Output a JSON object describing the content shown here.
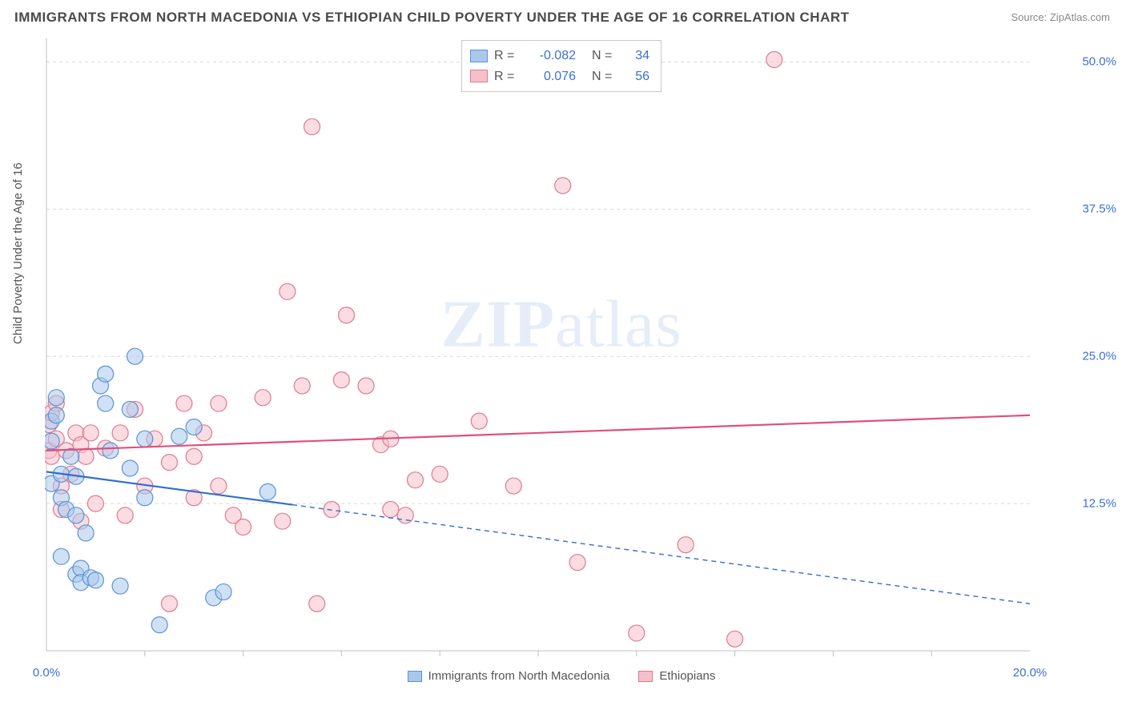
{
  "title": "IMMIGRANTS FROM NORTH MACEDONIA VS ETHIOPIAN CHILD POVERTY UNDER THE AGE OF 16 CORRELATION CHART",
  "source": "Source: ZipAtlas.com",
  "y_axis_label": "Child Poverty Under the Age of 16",
  "watermark": {
    "bold": "ZIP",
    "rest": "atlas"
  },
  "colors": {
    "series_a_fill": "#a9c8ec",
    "series_a_stroke": "#5a93d6",
    "series_a_line": "#2f6fd0",
    "series_b_fill": "#f5c0ca",
    "series_b_stroke": "#e07a8f",
    "series_b_line": "#e04f7a",
    "grid": "#d9d9d9",
    "axis": "#bfbfbf",
    "tick_text": "#3b6fd6",
    "label_text": "#555555",
    "title_text": "#4a4a4a",
    "background": "#ffffff"
  },
  "chart": {
    "type": "scatter",
    "xlim": [
      0,
      20
    ],
    "ylim": [
      0,
      52
    ],
    "x_ticks": [
      0,
      20
    ],
    "x_tick_labels": [
      "0.0%",
      "20.0%"
    ],
    "x_minor_ticks": [
      2,
      4,
      6,
      8,
      10,
      12,
      14,
      16,
      18
    ],
    "y_ticks": [
      12.5,
      25.0,
      37.5,
      50.0
    ],
    "y_tick_labels": [
      "12.5%",
      "25.0%",
      "37.5%",
      "50.0%"
    ],
    "marker_radius": 10,
    "marker_opacity": 0.55,
    "line_width": 2.2,
    "grid_dash": "4 4"
  },
  "legend_top": {
    "rows": [
      {
        "swatch_fill": "#a9c8ec",
        "swatch_stroke": "#5a93d6",
        "r_label": "R =",
        "r_value": "-0.082",
        "n_label": "N =",
        "n_value": "34"
      },
      {
        "swatch_fill": "#f5c0ca",
        "swatch_stroke": "#e07a8f",
        "r_label": "R =",
        "r_value": "0.076",
        "n_label": "N =",
        "n_value": "56"
      }
    ]
  },
  "legend_bottom": {
    "items": [
      {
        "swatch_fill": "#a9c8ec",
        "swatch_stroke": "#5a93d6",
        "label": "Immigrants from North Macedonia"
      },
      {
        "swatch_fill": "#f5c0ca",
        "swatch_stroke": "#e07a8f",
        "label": "Ethiopians"
      }
    ]
  },
  "series": {
    "a": {
      "name": "Immigrants from North Macedonia",
      "points": [
        [
          0.1,
          19.5
        ],
        [
          0.1,
          17.8
        ],
        [
          0.1,
          14.2
        ],
        [
          0.2,
          20.0
        ],
        [
          0.2,
          21.5
        ],
        [
          0.3,
          15.0
        ],
        [
          0.3,
          13.0
        ],
        [
          0.3,
          8.0
        ],
        [
          0.4,
          12.0
        ],
        [
          0.5,
          16.5
        ],
        [
          0.6,
          11.5
        ],
        [
          0.6,
          6.5
        ],
        [
          0.6,
          14.8
        ],
        [
          0.7,
          7.0
        ],
        [
          0.7,
          5.8
        ],
        [
          0.8,
          10.0
        ],
        [
          0.9,
          6.2
        ],
        [
          1.0,
          6.0
        ],
        [
          1.1,
          22.5
        ],
        [
          1.2,
          21.0
        ],
        [
          1.2,
          23.5
        ],
        [
          1.3,
          17.0
        ],
        [
          1.5,
          5.5
        ],
        [
          1.7,
          15.5
        ],
        [
          1.7,
          20.5
        ],
        [
          1.8,
          25.0
        ],
        [
          2.0,
          18.0
        ],
        [
          2.0,
          13.0
        ],
        [
          2.3,
          2.2
        ],
        [
          2.7,
          18.2
        ],
        [
          3.0,
          19.0
        ],
        [
          3.4,
          4.5
        ],
        [
          3.6,
          5.0
        ],
        [
          4.5,
          13.5
        ]
      ],
      "trend": {
        "y_at_x0": 15.2,
        "y_at_x20": 4.0,
        "solid_until_x": 5.0
      }
    },
    "b": {
      "name": "Ethiopians",
      "points": [
        [
          0.05,
          17.0
        ],
        [
          0.05,
          19.2
        ],
        [
          0.1,
          20.2
        ],
        [
          0.1,
          16.5
        ],
        [
          0.2,
          21.0
        ],
        [
          0.2,
          18.0
        ],
        [
          0.3,
          14.0
        ],
        [
          0.3,
          12.0
        ],
        [
          0.4,
          17.0
        ],
        [
          0.5,
          15.0
        ],
        [
          0.6,
          18.5
        ],
        [
          0.7,
          11.0
        ],
        [
          0.7,
          17.5
        ],
        [
          0.8,
          16.5
        ],
        [
          0.9,
          18.5
        ],
        [
          1.0,
          12.5
        ],
        [
          1.2,
          17.2
        ],
        [
          1.5,
          18.5
        ],
        [
          1.6,
          11.5
        ],
        [
          1.8,
          20.5
        ],
        [
          2.0,
          14.0
        ],
        [
          2.2,
          18.0
        ],
        [
          2.5,
          16.0
        ],
        [
          2.5,
          4.0
        ],
        [
          2.8,
          21.0
        ],
        [
          3.0,
          16.5
        ],
        [
          3.0,
          13.0
        ],
        [
          3.2,
          18.5
        ],
        [
          3.5,
          21.0
        ],
        [
          3.5,
          14.0
        ],
        [
          3.8,
          11.5
        ],
        [
          4.0,
          10.5
        ],
        [
          4.4,
          21.5
        ],
        [
          4.8,
          11.0
        ],
        [
          4.9,
          30.5
        ],
        [
          5.2,
          22.5
        ],
        [
          5.4,
          44.5
        ],
        [
          5.5,
          4.0
        ],
        [
          5.8,
          12.0
        ],
        [
          6.0,
          23.0
        ],
        [
          6.1,
          28.5
        ],
        [
          6.5,
          22.5
        ],
        [
          6.8,
          17.5
        ],
        [
          7.0,
          18.0
        ],
        [
          7.0,
          12.0
        ],
        [
          7.3,
          11.5
        ],
        [
          7.5,
          14.5
        ],
        [
          8.0,
          15.0
        ],
        [
          8.8,
          19.5
        ],
        [
          9.5,
          14.0
        ],
        [
          10.5,
          39.5
        ],
        [
          10.8,
          7.5
        ],
        [
          12.0,
          1.5
        ],
        [
          13.0,
          9.0
        ],
        [
          14.0,
          1.0
        ],
        [
          14.8,
          50.2
        ]
      ],
      "trend": {
        "y_at_x0": 17.0,
        "y_at_x20": 20.0,
        "solid_until_x": 20.0
      }
    }
  }
}
